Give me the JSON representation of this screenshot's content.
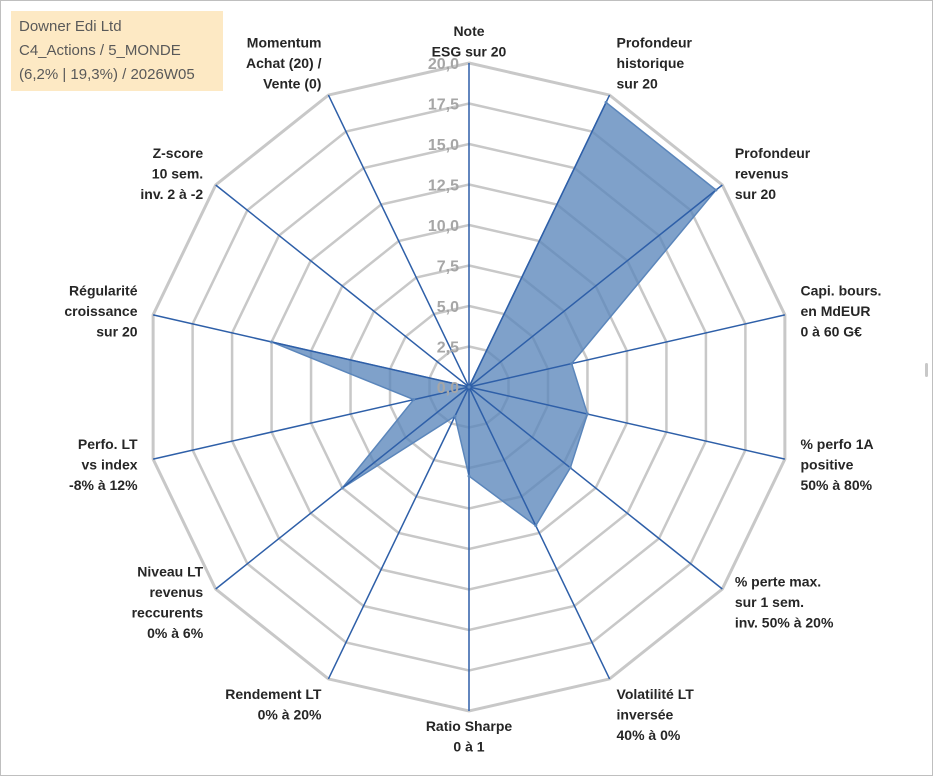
{
  "info": {
    "line1": "Downer Edi Ltd",
    "line2": "C4_Actions / 5_MONDE",
    "line3": "(6,2% | 19,3%) / 2026W05"
  },
  "colors": {
    "fill": "#5b86bb",
    "fill_opacity": 0.78,
    "axis_spoke": "#2e5fa8",
    "grid": "#c8c8c8",
    "info_bg": "#fde9c4"
  },
  "chart_data": {
    "type": "radar",
    "r_range": [
      0,
      20
    ],
    "r_step": 2.5,
    "grid": true,
    "tick_labels": [
      "0,0",
      "2,5",
      "5,0",
      "7,5",
      "10,0",
      "12,5",
      "15,0",
      "17,5",
      "20,0"
    ],
    "axes": [
      {
        "label": [
          "Note",
          "ESG sur 20"
        ]
      },
      {
        "label": [
          "Profondeur",
          "historique",
          "sur 20"
        ]
      },
      {
        "label": [
          "Profondeur",
          "revenus",
          "sur 20"
        ]
      },
      {
        "label": [
          "Capi. bours.",
          "en MdEUR",
          "0 à 60 G€"
        ]
      },
      {
        "label": [
          "% perfo 1A",
          "positive",
          "50% à 80%"
        ]
      },
      {
        "label": [
          "% perte max.",
          "sur 1 sem.",
          "inv. 50% à 20%"
        ]
      },
      {
        "label": [
          "Volatilité LT",
          "inversée",
          "40% à 0%"
        ]
      },
      {
        "label": [
          "Ratio Sharpe",
          "0 à 1"
        ]
      },
      {
        "label": [
          "Rendement LT",
          "0% à 20%"
        ]
      },
      {
        "label": [
          "Niveau LT",
          "revenus",
          "reccurents",
          "0% à 6%"
        ]
      },
      {
        "label": [
          "Perfo. LT",
          "vs index",
          "-8% à 12%"
        ]
      },
      {
        "label": [
          "Régularité",
          "croissance",
          "sur 20"
        ]
      },
      {
        "label": [
          "Z-score",
          "10 sem.",
          "inv. 2 à -2"
        ]
      },
      {
        "label": [
          "Momentum",
          "Achat (20) /",
          "Vente (0)"
        ]
      }
    ],
    "series": [
      {
        "values": [
          0,
          19.5,
          19.5,
          6.5,
          7.5,
          8.0,
          9.5,
          5.5,
          2.0,
          10.0,
          3.5,
          12.5,
          0,
          0
        ]
      }
    ]
  }
}
